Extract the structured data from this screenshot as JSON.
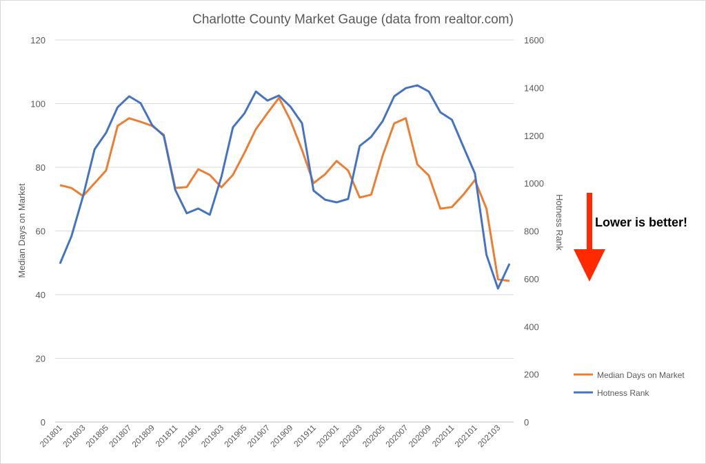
{
  "chart_data": {
    "type": "line",
    "title": "Charlotte County Market Gauge (data from realtor.com)",
    "ylabel": "Median Days on Market",
    "y2label": "Hotness Rank",
    "ylim": [
      0,
      120
    ],
    "y2lim": [
      0,
      1600
    ],
    "yticks": [
      0,
      20,
      40,
      60,
      80,
      100,
      120
    ],
    "y2ticks": [
      0,
      200,
      400,
      600,
      800,
      1000,
      1200,
      1400,
      1600
    ],
    "grid": true,
    "legend_position": "right",
    "x": [
      "201801",
      "201802",
      "201803",
      "201804",
      "201805",
      "201806",
      "201807",
      "201808",
      "201809",
      "201810",
      "201811",
      "201812",
      "201901",
      "201902",
      "201903",
      "201904",
      "201905",
      "201906",
      "201907",
      "201908",
      "201909",
      "201910",
      "201911",
      "201912",
      "202001",
      "202002",
      "202003",
      "202004",
      "202005",
      "202006",
      "202007",
      "202008",
      "202009",
      "202010",
      "202011",
      "202012",
      "202101",
      "202102",
      "202103",
      "202104"
    ],
    "xtick_labels": [
      "201801",
      "201803",
      "201805",
      "201807",
      "201809",
      "201811",
      "201901",
      "201903",
      "201905",
      "201907",
      "201909",
      "201911",
      "202001",
      "202003",
      "202005",
      "202007",
      "202009",
      "202011",
      "202101",
      "202103"
    ],
    "series": [
      {
        "name": "Median Days on Market",
        "axis": "left",
        "color": "#ED7D31",
        "values": [
          74.4,
          73.5,
          71,
          75,
          79,
          93,
          95.4,
          94.3,
          93,
          90.2,
          73.5,
          73.8,
          79.4,
          77.6,
          73.7,
          77.6,
          84.5,
          92,
          97,
          101.8,
          94.7,
          85.4,
          75,
          77.8,
          82,
          79,
          70.5,
          71.4,
          83.7,
          93.8,
          95.4,
          80.9,
          77.4,
          67,
          67.5,
          71.4,
          76,
          67,
          44.8,
          44.3
        ]
      },
      {
        "name": "Hotness Rank",
        "axis": "right",
        "color": "#4472C4",
        "values": [
          663,
          778,
          945,
          1142,
          1211,
          1318,
          1364,
          1335,
          1243,
          1199,
          972,
          874,
          894,
          868,
          1026,
          1234,
          1292,
          1384,
          1346,
          1367,
          1320,
          1251,
          969,
          931,
          920,
          934,
          1156,
          1194,
          1260,
          1364,
          1398,
          1410,
          1384,
          1297,
          1266,
          1153,
          1041,
          700,
          559,
          663
        ]
      }
    ],
    "annotation": {
      "text": "Lower is better!",
      "arrow_color": "#FF0000",
      "arrow_direction": "down"
    }
  }
}
